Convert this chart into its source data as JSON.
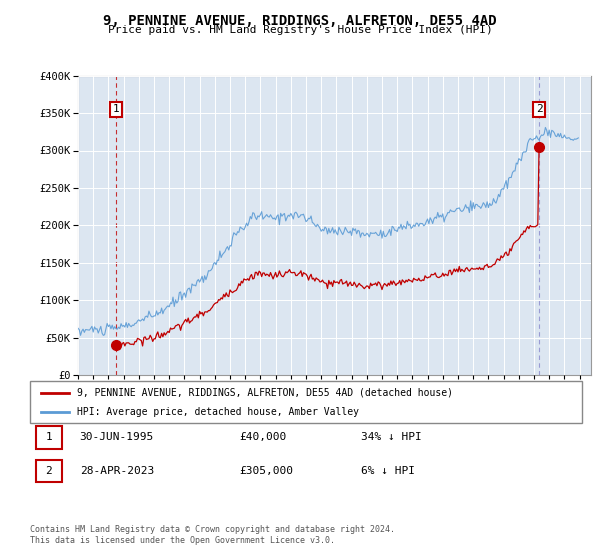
{
  "title": "9, PENNINE AVENUE, RIDDINGS, ALFRETON, DE55 4AD",
  "subtitle": "Price paid vs. HM Land Registry's House Price Index (HPI)",
  "sale1_price": 40000,
  "sale1_label": "1",
  "sale2_price": 305000,
  "sale2_label": "2",
  "legend_line1": "9, PENNINE AVENUE, RIDDINGS, ALFRETON, DE55 4AD (detached house)",
  "legend_line2": "HPI: Average price, detached house, Amber Valley",
  "table_row1": [
    "1",
    "30-JUN-1995",
    "£40,000",
    "34% ↓ HPI"
  ],
  "table_row2": [
    "2",
    "28-APR-2023",
    "£305,000",
    "6% ↓ HPI"
  ],
  "footnote1": "Contains HM Land Registry data © Crown copyright and database right 2024.",
  "footnote2": "This data is licensed under the Open Government Licence v3.0.",
  "hpi_color": "#5b9bd5",
  "price_color": "#c00000",
  "ylim": [
    0,
    400000
  ],
  "xlim_start": 1993.25,
  "xlim_end": 2026.75,
  "sale1_x": 1995.5,
  "sale2_x": 2023.33
}
